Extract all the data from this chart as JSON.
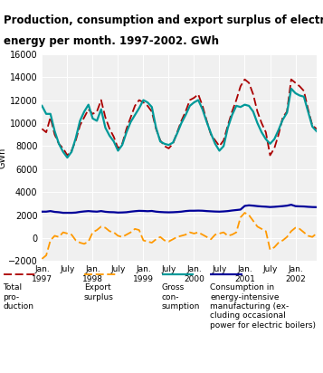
{
  "title_line1": "Production, consumption and export surplus of electric",
  "title_line2": "energy per month. 1997-2002. GWh",
  "ylabel": "GWh",
  "ylim": [
    -2000,
    16000
  ],
  "yticks": [
    -2000,
    0,
    2000,
    4000,
    6000,
    8000,
    10000,
    12000,
    14000,
    16000
  ],
  "colors": {
    "total_production": "#aa0000",
    "export_surplus": "#ff9900",
    "gross_consumption": "#009999",
    "energy_intensive": "#000099"
  },
  "total_production": [
    9500,
    9200,
    10500,
    9000,
    8200,
    7800,
    7200,
    7600,
    8500,
    9800,
    10500,
    11200,
    10800,
    11000,
    12000,
    10500,
    9500,
    8800,
    7800,
    8200,
    9500,
    10500,
    11500,
    12000,
    11800,
    11500,
    11000,
    9500,
    8500,
    8000,
    7800,
    8200,
    9200,
    10200,
    11000,
    12000,
    12200,
    12500,
    11500,
    10200,
    9000,
    8500,
    8000,
    8500,
    9800,
    11000,
    12000,
    13200,
    13800,
    13500,
    12500,
    11000,
    10000,
    9200,
    7200,
    7800,
    9000,
    10500,
    11000,
    13800,
    13500,
    13200,
    12800,
    11200,
    9800,
    9500
  ],
  "export_surplus": [
    -1800,
    -1500,
    -200,
    200,
    100,
    500,
    400,
    300,
    -200,
    -400,
    -500,
    -300,
    500,
    700,
    1000,
    900,
    600,
    500,
    200,
    100,
    300,
    500,
    800,
    700,
    -200,
    -300,
    -400,
    -100,
    100,
    -200,
    -300,
    -100,
    100,
    200,
    300,
    500,
    400,
    500,
    300,
    100,
    -100,
    300,
    400,
    500,
    200,
    300,
    500,
    1800,
    2200,
    2000,
    1500,
    1000,
    800,
    600,
    -1000,
    -800,
    -400,
    -200,
    100,
    600,
    900,
    800,
    500,
    200,
    100,
    400
  ],
  "gross_consumption": [
    11500,
    10800,
    10800,
    9300,
    8200,
    7500,
    7000,
    7500,
    8700,
    10200,
    11000,
    11600,
    10400,
    10200,
    11200,
    9600,
    8900,
    8400,
    7600,
    8100,
    9200,
    10100,
    10700,
    11300,
    12000,
    11800,
    11400,
    9600,
    8400,
    8200,
    8100,
    8300,
    9100,
    10000,
    10700,
    11500,
    11800,
    12000,
    11200,
    10100,
    9100,
    8200,
    7600,
    8000,
    9600,
    10700,
    11500,
    11400,
    11600,
    11500,
    11000,
    10000,
    9200,
    8600,
    8200,
    8600,
    9400,
    10300,
    10900,
    13000,
    12600,
    12400,
    12300,
    11000,
    9700,
    9300
  ],
  "energy_intensive": [
    2300,
    2300,
    2350,
    2280,
    2250,
    2200,
    2200,
    2200,
    2220,
    2280,
    2320,
    2350,
    2320,
    2300,
    2350,
    2290,
    2260,
    2250,
    2220,
    2230,
    2250,
    2300,
    2340,
    2370,
    2360,
    2340,
    2360,
    2300,
    2270,
    2250,
    2240,
    2250,
    2270,
    2300,
    2350,
    2380,
    2380,
    2390,
    2380,
    2350,
    2330,
    2310,
    2300,
    2320,
    2350,
    2400,
    2440,
    2480,
    2800,
    2850,
    2820,
    2780,
    2750,
    2730,
    2700,
    2720,
    2750,
    2780,
    2820,
    2900,
    2780,
    2760,
    2750,
    2720,
    2700,
    2690
  ],
  "xtick_positions": [
    0,
    6,
    12,
    18,
    24,
    30,
    36,
    42,
    48,
    54,
    60
  ],
  "xtick_labels": [
    "Jan.\n1997",
    "July",
    "Jan.\n1998",
    "July",
    "Jan.\n1999",
    "July",
    "Jan.\n2000",
    "July",
    "Jan.\n2001",
    "July",
    "Jan.\n2002"
  ],
  "teal_bar_color": "#44bbbb",
  "grid_color": "#dddddd",
  "bg_color": "#f0f0f0"
}
